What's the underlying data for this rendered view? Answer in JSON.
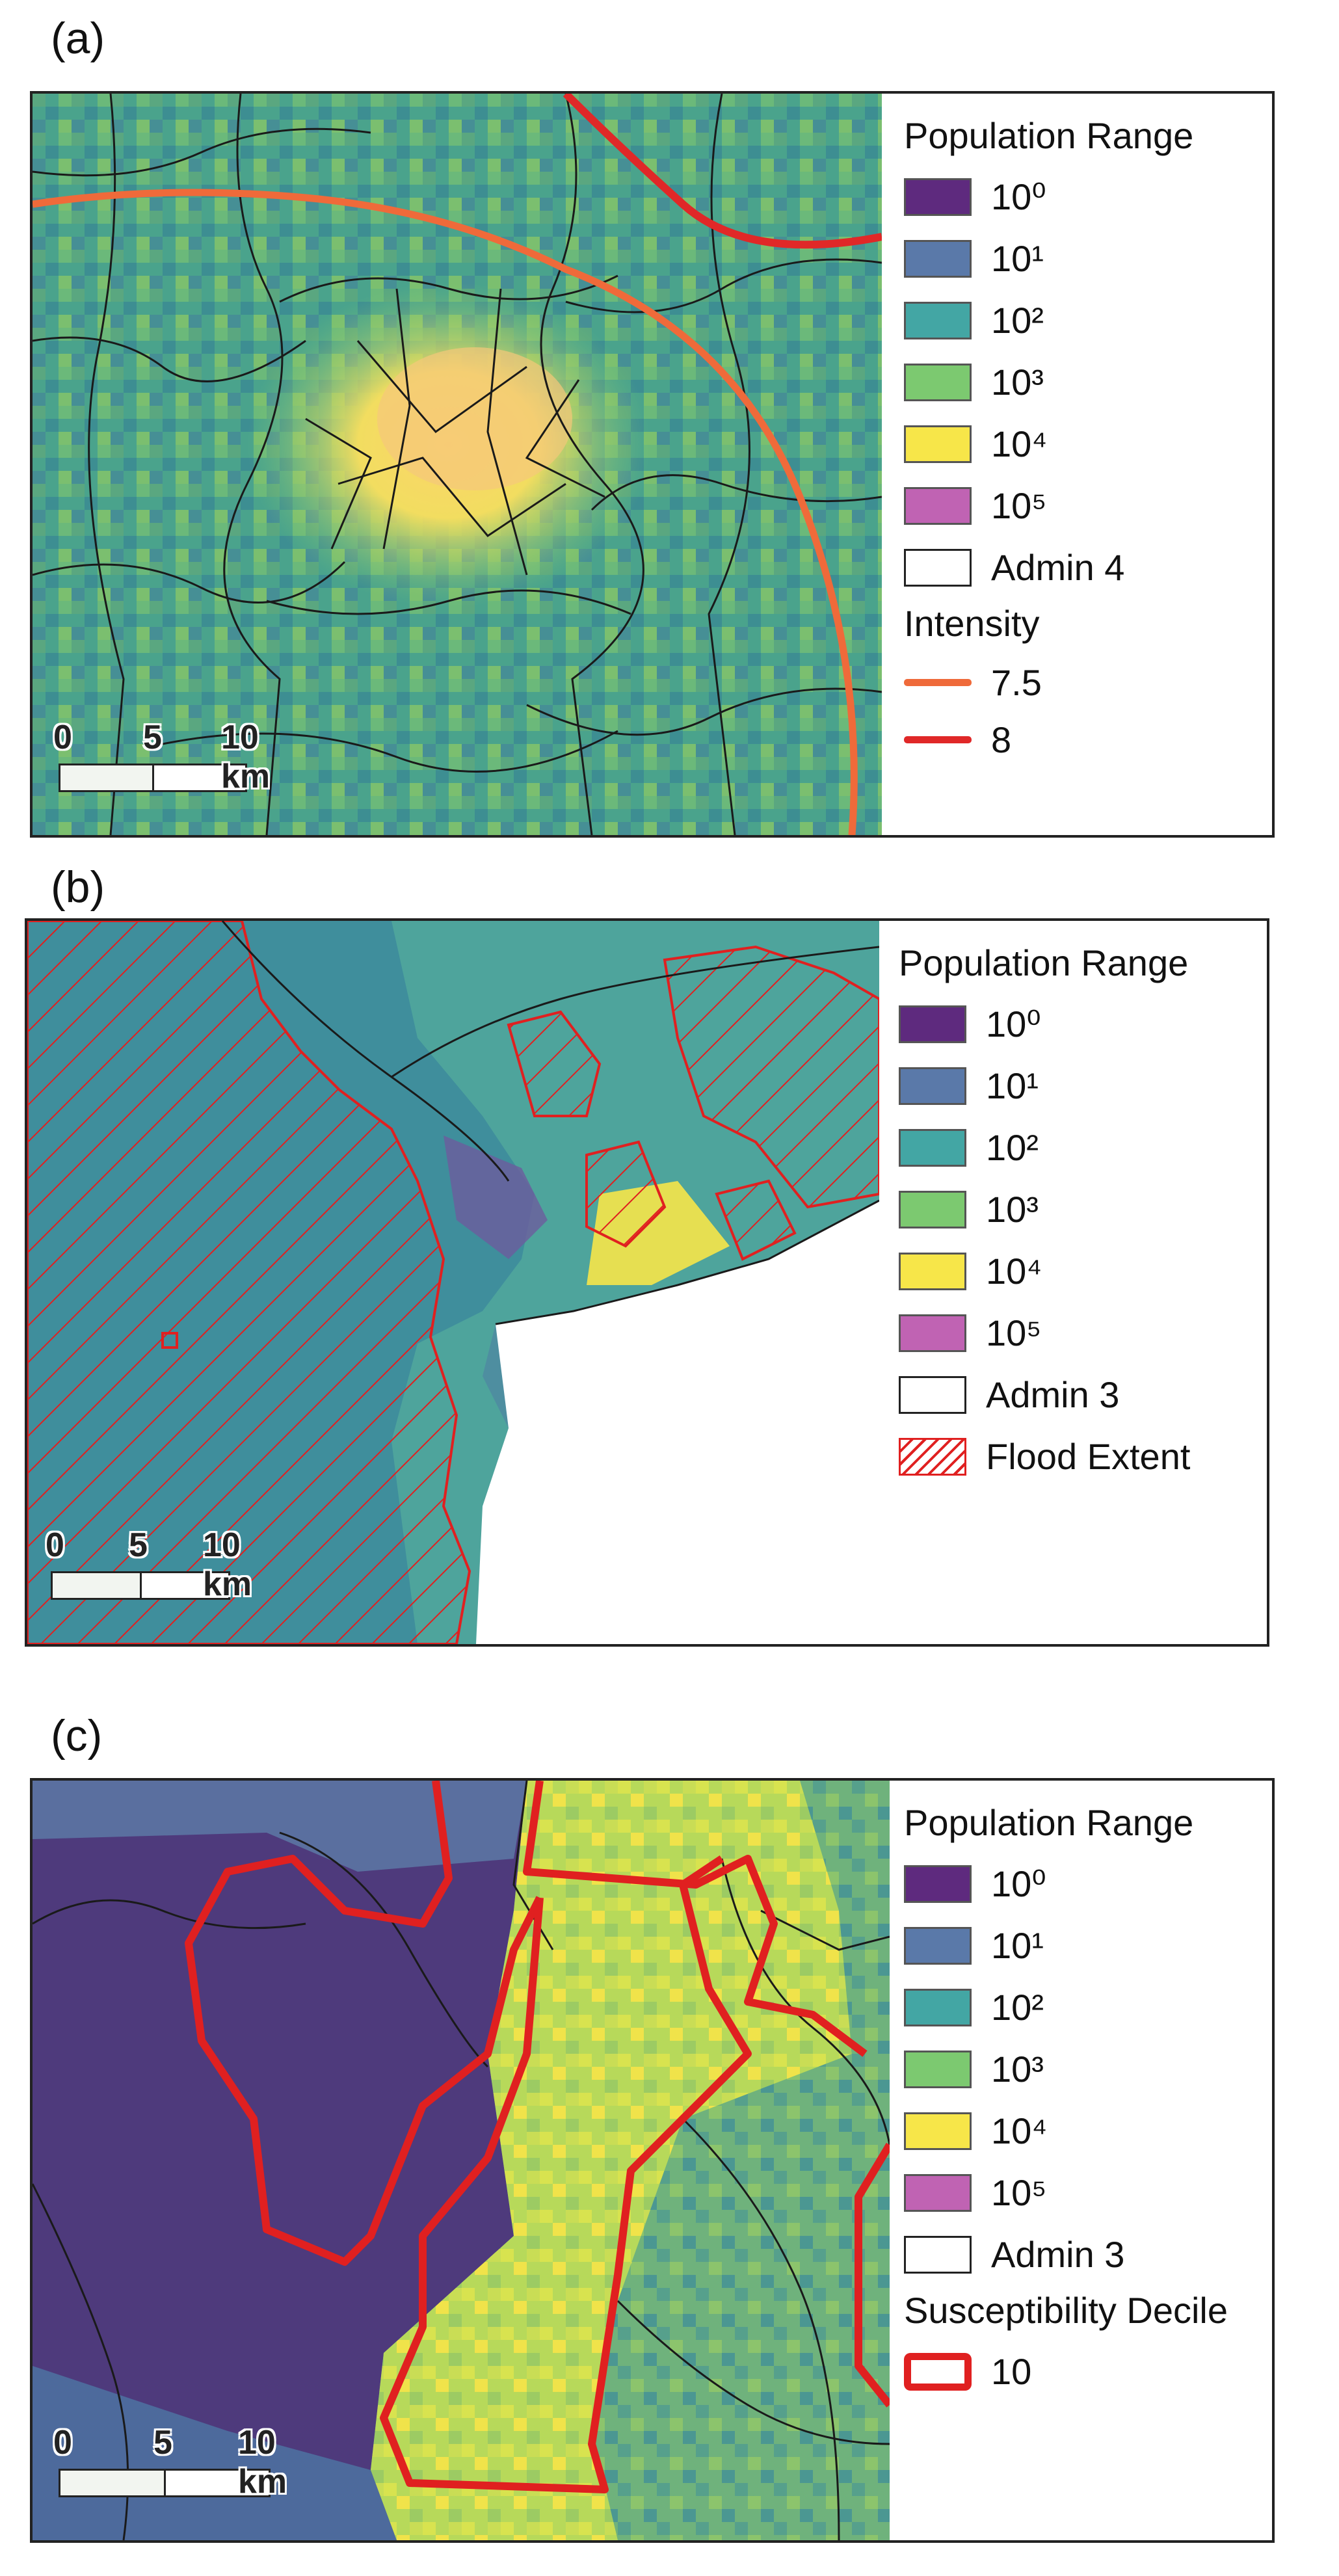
{
  "panels": [
    {
      "letter": "(a)",
      "legend": {
        "title": "Population Range",
        "ranges": [
          {
            "label": "10⁰",
            "color": "#5e2a7e"
          },
          {
            "label": "10¹",
            "color": "#5a79a9"
          },
          {
            "label": "10²",
            "color": "#43a6a4"
          },
          {
            "label": "10³",
            "color": "#7cc970"
          },
          {
            "label": "10⁴",
            "color": "#f7e649"
          },
          {
            "label": "10⁵",
            "color": "#c063b3"
          }
        ],
        "admin_label": "Admin 4",
        "section2_title": "Intensity",
        "lines": [
          {
            "label": "7.5",
            "color": "#ef6a3a"
          },
          {
            "label": "8",
            "color": "#e02828"
          }
        ]
      },
      "scale": [
        "0",
        "5",
        "10 km"
      ]
    },
    {
      "letter": "(b)",
      "legend": {
        "title": "Population Range",
        "ranges": [
          {
            "label": "10⁰",
            "color": "#5e2a7e"
          },
          {
            "label": "10¹",
            "color": "#5a79a9"
          },
          {
            "label": "10²",
            "color": "#43a6a4"
          },
          {
            "label": "10³",
            "color": "#7cc970"
          },
          {
            "label": "10⁴",
            "color": "#f7e649"
          },
          {
            "label": "10⁵",
            "color": "#c063b3"
          }
        ],
        "admin_label": "Admin  3",
        "flood_label": "Flood Extent"
      },
      "scale": [
        "0",
        "5",
        "10 km"
      ]
    },
    {
      "letter": "(c)",
      "legend": {
        "title": "Population Range",
        "ranges": [
          {
            "label": "10⁰",
            "color": "#5e2a7e"
          },
          {
            "label": "10¹",
            "color": "#5a79a9"
          },
          {
            "label": "10²",
            "color": "#43a6a4"
          },
          {
            "label": "10³",
            "color": "#7cc970"
          },
          {
            "label": "10⁴",
            "color": "#f7e649"
          },
          {
            "label": "10⁵",
            "color": "#c063b3"
          }
        ],
        "admin_label": "Admin 3",
        "section2_title": "Susceptibility Decile",
        "outline_label": "10",
        "outline_color": "#e02020"
      },
      "scale": [
        "0",
        "5",
        "10 km"
      ]
    }
  ]
}
